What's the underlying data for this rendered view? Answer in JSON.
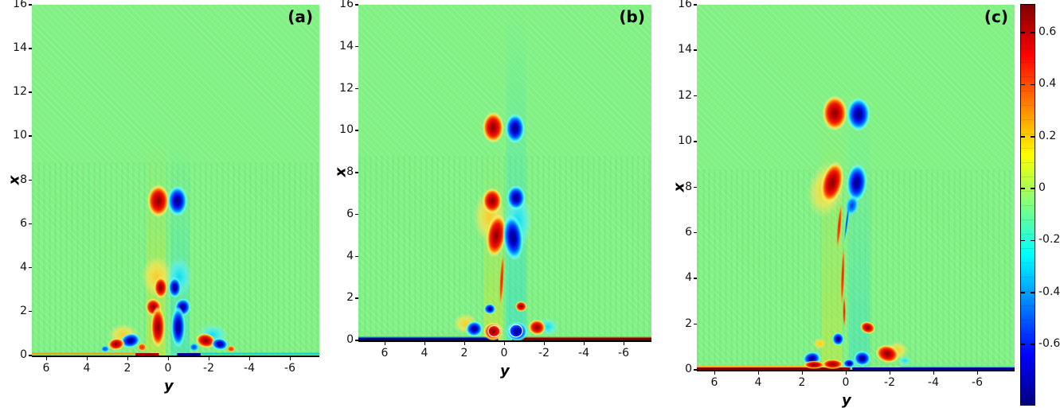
{
  "figure": {
    "xlabel": "y",
    "ylabel": "x",
    "background_color": "#ffffff",
    "field_zero_color": "#80f182",
    "colormap": "jet"
  },
  "chart_data": [
    {
      "type": "heatmap",
      "panel": "(a)",
      "xlabel": "y",
      "ylabel": "x",
      "xlim": [
        7.0,
        -7.4
      ],
      "ylim": [
        0,
        16
      ],
      "xticks": [
        6,
        4,
        2,
        0,
        -2,
        -4,
        -6
      ],
      "yticks": [
        0,
        2,
        4,
        6,
        8,
        10,
        12,
        14,
        16
      ],
      "x_axis_reversed": true,
      "structures": [
        "counter-rotating vortex dipole at x=7 (positive left of centerline, negative right)",
        "small dipole at x=3",
        "mushroom-cap starting plume x=0.3-2.4 (positive stem left, negative right)",
        "near-wall vortex pairs around y=+-1.3 to +-3, x<1",
        "thin positive wall layer on left, negative on right"
      ],
      "blobs": [
        [
          0.55,
          3.6,
          0.75,
          0.95,
          0,
          "O"
        ],
        [
          -0.55,
          3.6,
          0.65,
          0.9,
          0,
          "C"
        ],
        [
          0.48,
          7.05,
          0.55,
          0.75,
          0,
          "PP"
        ],
        [
          -0.46,
          7.05,
          0.5,
          0.7,
          0,
          "NN"
        ],
        [
          0.36,
          3.1,
          0.34,
          0.5,
          0,
          "PP"
        ],
        [
          -0.33,
          3.1,
          0.32,
          0.48,
          0,
          "NN"
        ],
        [
          0.72,
          2.2,
          0.4,
          0.42,
          -15,
          "PP"
        ],
        [
          -0.72,
          2.2,
          0.4,
          0.42,
          15,
          "NN"
        ],
        [
          0.5,
          1.3,
          0.36,
          0.95,
          0,
          "PP"
        ],
        [
          -0.5,
          1.3,
          0.36,
          0.95,
          0,
          "NN"
        ],
        [
          2.2,
          0.95,
          0.75,
          0.5,
          0,
          "O"
        ],
        [
          -2.2,
          0.95,
          0.75,
          0.5,
          0,
          "C"
        ],
        [
          1.85,
          0.68,
          0.5,
          0.34,
          -12,
          "NN"
        ],
        [
          2.55,
          0.52,
          0.42,
          0.28,
          -8,
          "PP"
        ],
        [
          1.28,
          0.38,
          0.24,
          0.2,
          0,
          "P"
        ],
        [
          3.1,
          0.3,
          0.22,
          0.16,
          0,
          "N"
        ],
        [
          -1.85,
          0.68,
          0.5,
          0.34,
          12,
          "PP"
        ],
        [
          -2.55,
          0.52,
          0.42,
          0.28,
          8,
          "NN"
        ],
        [
          -1.28,
          0.38,
          0.24,
          0.2,
          0,
          "N"
        ],
        [
          -3.1,
          0.3,
          0.22,
          0.16,
          0,
          "P"
        ]
      ],
      "rings": [],
      "bands": [
        {
          "y1": 1.05,
          "y2": 0.12,
          "xtop": 10,
          "c": "255,220,0",
          "op": 0.38
        },
        {
          "y1": -0.12,
          "y2": -1.05,
          "xtop": 10,
          "c": "0,210,255",
          "op": 0.33
        }
      ],
      "strips": [
        {
          "y1": 7.5,
          "y2": 0.9,
          "h": 2.5,
          "dy": 1,
          "c": "#ff9800",
          "op": 0.9
        },
        {
          "y1": 1.6,
          "y2": 0.45,
          "h": 3,
          "dy": 0,
          "c": "#aa0000",
          "op": 1
        },
        {
          "y1": -0.9,
          "y2": -7.5,
          "h": 2.5,
          "dy": 1,
          "c": "#00d0e8",
          "op": 0.85
        },
        {
          "y1": -0.45,
          "y2": -1.6,
          "h": 3,
          "dy": 0,
          "c": "#000090",
          "op": 1
        }
      ]
    },
    {
      "type": "heatmap",
      "panel": "(b)",
      "xlabel": "y",
      "ylabel": "x",
      "xlim": [
        7.3,
        -7.4
      ],
      "ylim": [
        0,
        16
      ],
      "xticks": [
        6,
        4,
        2,
        0,
        -2,
        -4,
        -6
      ],
      "yticks": [
        0,
        2,
        4,
        6,
        8,
        10,
        12,
        14,
        16
      ],
      "x_axis_reversed": true,
      "structures": [
        "vortex dipole at x=10",
        "dipole at x=6.7 above elongated dipole x=4-6",
        "thin positive filament along centerline x=1.8-4.2",
        "small negative vortex at y=0.7 x=1.5, positive at y=-0.85 x=1.6",
        "wall mushroom dome pair at x<1 with white spiral braids",
        "negative wall layer on left, positive on right"
      ],
      "blobs": [
        [
          0.75,
          5.9,
          0.8,
          1.3,
          0,
          "O"
        ],
        [
          -0.7,
          5.7,
          0.7,
          1.3,
          0,
          "C"
        ],
        [
          0.55,
          10.15,
          0.55,
          0.75,
          0,
          "PP"
        ],
        [
          -0.55,
          10.1,
          0.5,
          0.72,
          0,
          "NN"
        ],
        [
          0.6,
          6.65,
          0.5,
          0.62,
          0,
          "PP"
        ],
        [
          -0.6,
          6.8,
          0.48,
          0.6,
          0,
          "NN"
        ],
        [
          0.4,
          5.0,
          0.5,
          1.05,
          8,
          "PP"
        ],
        [
          -0.45,
          4.9,
          0.52,
          1.1,
          -5,
          "NN"
        ],
        [
          0.12,
          2.9,
          0.1,
          1.25,
          3,
          "Pfil"
        ],
        [
          0.72,
          1.5,
          0.3,
          0.26,
          0,
          "NN"
        ],
        [
          -0.85,
          1.62,
          0.3,
          0.26,
          0,
          "PP"
        ],
        [
          1.95,
          0.8,
          0.6,
          0.5,
          0,
          "O"
        ],
        [
          -2.2,
          0.65,
          0.55,
          0.42,
          0,
          "C"
        ],
        [
          1.5,
          0.55,
          0.44,
          0.38,
          -10,
          "NN"
        ],
        [
          -1.65,
          0.62,
          0.44,
          0.38,
          10,
          "PP"
        ],
        [
          0.55,
          0.42,
          0.5,
          0.44,
          0,
          "PP"
        ],
        [
          -0.65,
          0.42,
          0.55,
          0.48,
          0,
          "NN"
        ]
      ],
      "rings": [
        [
          0.5,
          0.44,
          0.3,
          0.27,
          "#ffffff"
        ],
        [
          -0.6,
          0.46,
          0.33,
          0.3,
          "#ffffff"
        ]
      ],
      "bands": [
        {
          "y1": 1.0,
          "y2": 0.1,
          "xtop": 9,
          "c": "255,220,0",
          "op": 0.35
        },
        {
          "y1": -0.1,
          "y2": -1.1,
          "xtop": 16,
          "c": "0,210,255",
          "op": 0.35
        }
      ],
      "strips": [
        {
          "y1": 7.5,
          "y2": 0.6,
          "h": 2,
          "dy": 3,
          "c": "#00b8ff",
          "op": 0.8
        },
        {
          "y1": 7.5,
          "y2": 0.3,
          "h": 3.5,
          "dy": 0,
          "c": "#000085",
          "op": 1
        },
        {
          "y1": -0.4,
          "y2": -7.5,
          "h": 1.5,
          "dy": 3.5,
          "c": "#ff6000",
          "op": 0.5
        },
        {
          "y1": -0.4,
          "y2": -7.5,
          "h": 3.5,
          "dy": 0,
          "c": "#7a0000",
          "op": 1
        }
      ]
    },
    {
      "type": "heatmap",
      "panel": "(c)",
      "xlabel": "y",
      "ylabel": "x",
      "xlim": [
        6.8,
        -7.7
      ],
      "ylim": [
        0,
        16
      ],
      "xticks": [
        6,
        4,
        2,
        0,
        -2,
        -4,
        -6
      ],
      "yticks": [
        0,
        2,
        4,
        6,
        8,
        10,
        12,
        14,
        16
      ],
      "x_axis_reversed": true,
      "structures": [
        "vortex dipole at x=11.2",
        "large tilted positive vortex x=7.3-9.2 with negative companion on right",
        "long thin positive filament from x=7.3 down to x=2.3 near centerline",
        "scattered near-wall vortices below x=2",
        "positive wall layer on left, negative on right"
      ],
      "blobs": [
        [
          0.9,
          7.9,
          0.85,
          1.25,
          14,
          "O"
        ],
        [
          0.5,
          11.25,
          0.58,
          0.78,
          0,
          "PP"
        ],
        [
          -0.58,
          11.2,
          0.55,
          0.75,
          0,
          "NN"
        ],
        [
          0.62,
          8.2,
          0.5,
          0.95,
          14,
          "PP"
        ],
        [
          -0.5,
          8.2,
          0.48,
          0.85,
          4,
          "NN"
        ],
        [
          -0.28,
          7.2,
          0.3,
          0.45,
          12,
          "N"
        ],
        [
          0.3,
          6.3,
          0.09,
          1.0,
          5,
          "Pfil"
        ],
        [
          0.14,
          4.1,
          0.08,
          1.3,
          2,
          "Pfil"
        ],
        [
          0.07,
          2.55,
          0.07,
          0.7,
          0,
          "Pfil"
        ],
        [
          -0.05,
          6.5,
          0.06,
          0.9,
          7,
          "Nfil"
        ],
        [
          1.2,
          1.15,
          0.3,
          0.25,
          0,
          "Y"
        ],
        [
          0.35,
          1.35,
          0.28,
          0.3,
          0,
          "NN"
        ],
        [
          -1.0,
          1.85,
          0.36,
          0.27,
          20,
          "PP"
        ],
        [
          1.55,
          0.5,
          0.42,
          0.3,
          -10,
          "NN"
        ],
        [
          -0.75,
          0.5,
          0.4,
          0.34,
          0,
          "NN"
        ],
        [
          -2.35,
          0.85,
          0.5,
          0.4,
          0,
          "O"
        ],
        [
          -1.9,
          0.7,
          0.55,
          0.4,
          15,
          "PP"
        ],
        [
          -2.7,
          0.4,
          0.3,
          0.2,
          0,
          "C"
        ],
        [
          0.6,
          0.25,
          0.5,
          0.22,
          0,
          "PP"
        ],
        [
          1.45,
          0.22,
          0.5,
          0.18,
          0,
          "PP"
        ],
        [
          -0.15,
          0.28,
          0.28,
          0.2,
          0,
          "NN"
        ]
      ],
      "rings": [],
      "bands": [
        {
          "y1": 1.1,
          "y2": 0.15,
          "xtop": 11.5,
          "c": "255,220,0",
          "op": 0.32
        },
        {
          "y1": -0.15,
          "y2": -1.1,
          "xtop": 11.5,
          "c": "0,210,255",
          "op": 0.3
        }
      ],
      "strips": [
        {
          "y1": 7.3,
          "y2": 1.0,
          "h": 2,
          "dy": 3,
          "c": "#ffb000",
          "op": 0.85
        },
        {
          "y1": 7.3,
          "y2": -0.2,
          "h": 3,
          "dy": 0,
          "c": "#8a0000",
          "op": 1
        },
        {
          "y1": -0.3,
          "y2": -7.8,
          "h": 3,
          "dy": 0,
          "c": "#000090",
          "op": 1
        },
        {
          "y1": -2.5,
          "y2": -7.8,
          "h": 1.5,
          "dy": 3,
          "c": "#00d0e0",
          "op": 0.6
        }
      ]
    },
    {
      "type": "colorbar",
      "ticks": [
        0.6,
        0.4,
        0.2,
        0,
        -0.2,
        -0.4,
        -0.6
      ],
      "tick_labels": [
        "0.6",
        "0.4",
        "0.2",
        "0",
        "-0.2",
        "-0.4",
        "-0.6"
      ],
      "clim": [
        -0.83,
        0.71
      ],
      "colors_top_to_bottom": [
        "#800000",
        "#ff0000",
        "#ff8000",
        "#ffff00",
        "#80ff80",
        "#00ffff",
        "#0080ff",
        "#0000ff",
        "#000080"
      ]
    }
  ],
  "palettes": {
    "PP": [
      [
        "0",
        "#7a0000",
        1
      ],
      [
        "0.3",
        "#c80000",
        1
      ],
      [
        "0.55",
        "#f01800",
        1
      ],
      [
        "0.7",
        "#ff7800",
        1
      ],
      [
        "0.8",
        "#ffd23c",
        1
      ],
      [
        "0.9",
        "#fff078",
        0.5
      ],
      [
        "1",
        "#fff078",
        0
      ]
    ],
    "P": [
      [
        "0",
        "#e82000",
        1
      ],
      [
        "0.5",
        "#ff6000",
        1
      ],
      [
        "0.72",
        "#ffc830",
        0.9
      ],
      [
        "1",
        "#ffdc64",
        0
      ]
    ],
    "O": [
      [
        "0",
        "#ffc828",
        0.95
      ],
      [
        "0.55",
        "#ffe650",
        0.7
      ],
      [
        "1",
        "#ffe678",
        0
      ]
    ],
    "Y": [
      [
        "0",
        "#ffd000",
        1
      ],
      [
        "0.5",
        "#ffdc3c",
        0.85
      ],
      [
        "1",
        "#ffe664",
        0
      ]
    ],
    "NN": [
      [
        "0",
        "#00007a",
        1
      ],
      [
        "0.3",
        "#0000c8",
        1
      ],
      [
        "0.55",
        "#0040ff",
        1
      ],
      [
        "0.7",
        "#00a8ff",
        1
      ],
      [
        "0.8",
        "#40e8ff",
        1
      ],
      [
        "0.9",
        "#78ffff",
        0.5
      ],
      [
        "1",
        "#78ffff",
        0
      ]
    ],
    "N": [
      [
        "0",
        "#0030e8",
        1
      ],
      [
        "0.5",
        "#0090ff",
        1
      ],
      [
        "0.72",
        "#30dcff",
        0.9
      ],
      [
        "1",
        "#64f0ff",
        0
      ]
    ],
    "C": [
      [
        "0",
        "#00dcff",
        0.9
      ],
      [
        "0.55",
        "#50f0ff",
        0.65
      ],
      [
        "1",
        "#8cfaff",
        0
      ]
    ],
    "Pfil": [
      [
        "0",
        "#d81800",
        1
      ],
      [
        "0.6",
        "#ff5000",
        0.9
      ],
      [
        "0.85",
        "#ffa028",
        0.6
      ],
      [
        "1",
        "#ffa028",
        0
      ]
    ],
    "Nfil": [
      [
        "0",
        "#0030d8",
        1
      ],
      [
        "0.6",
        "#0090ff",
        0.85
      ],
      [
        "1",
        "#30c8ff",
        0
      ]
    ]
  }
}
